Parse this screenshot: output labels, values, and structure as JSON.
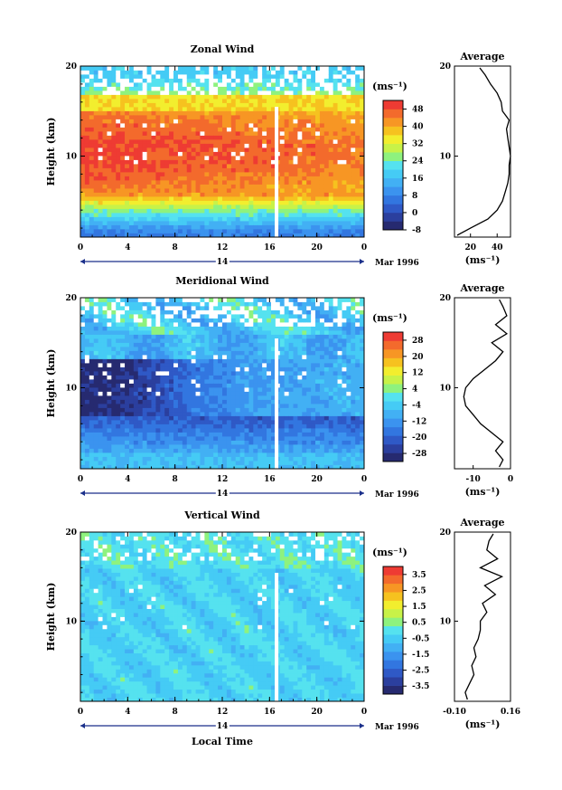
{
  "figure": {
    "xlabel": "Local Time",
    "date_label": "Mar 1996",
    "day_label": "14"
  },
  "chart_data": [
    {
      "type": "heatmap",
      "title": "Zonal Wind",
      "ylabel": "Height (km)",
      "xlabel": "",
      "x_ticks": [
        "0",
        "4",
        "8",
        "12",
        "16",
        "20",
        "0"
      ],
      "y_ticks": [
        "20",
        "10"
      ],
      "ylim": [
        1,
        20
      ],
      "colorbar": {
        "unit": "(ms⁻¹)",
        "ticks": [
          "48",
          "40",
          "32",
          "24",
          "16",
          "8",
          "0",
          "-8"
        ],
        "range": [
          -8,
          52
        ]
      },
      "profile": {
        "title": "Average",
        "unit": "(ms⁻¹)",
        "x_ticks": [
          "20",
          "40"
        ],
        "xlim": [
          8,
          50
        ],
        "heights": [
          1.2,
          2,
          3,
          4,
          5,
          6,
          7,
          8,
          9,
          10,
          11,
          12,
          13,
          14,
          15,
          16,
          17,
          18,
          19,
          19.8
        ],
        "values": [
          10,
          20,
          33,
          40,
          44,
          46,
          48,
          49,
          49,
          50,
          49,
          48,
          47,
          49,
          44,
          43,
          40,
          35,
          31,
          27
        ]
      }
    },
    {
      "type": "heatmap",
      "title": "Meridional Wind",
      "ylabel": "Height (km)",
      "xlabel": "",
      "x_ticks": [
        "0",
        "4",
        "8",
        "12",
        "16",
        "20",
        "0"
      ],
      "y_ticks": [
        "20",
        "10"
      ],
      "ylim": [
        1,
        20
      ],
      "colorbar": {
        "unit": "(ms⁻¹)",
        "ticks": [
          "28",
          "20",
          "12",
          "4",
          "-4",
          "-12",
          "-20",
          "-28"
        ],
        "range": [
          -32,
          32
        ]
      },
      "profile": {
        "title": "Average",
        "unit": "(ms⁻¹)",
        "x_ticks": [
          "-10",
          "0"
        ],
        "xlim": [
          -15,
          0
        ],
        "heights": [
          1.2,
          2,
          3,
          4,
          5,
          6,
          7,
          8,
          9,
          10,
          11,
          12,
          13,
          14,
          15,
          16,
          17,
          18,
          19,
          19.8
        ],
        "values": [
          -3,
          -2,
          -4,
          -2,
          -5,
          -8,
          -10,
          -12,
          -12.5,
          -12,
          -10,
          -7,
          -4,
          -2,
          -5,
          -1,
          -4,
          -1,
          -2,
          -3
        ]
      }
    },
    {
      "type": "heatmap",
      "title": "Vertical Wind",
      "ylabel": "Height (km)",
      "xlabel": "Local Time",
      "x_ticks": [
        "0",
        "4",
        "8",
        "12",
        "16",
        "20",
        "0"
      ],
      "y_ticks": [
        "20",
        "10"
      ],
      "ylim": [
        1,
        20
      ],
      "colorbar": {
        "unit": "(ms⁻¹)",
        "ticks": [
          "3.5",
          "2.5",
          "1.5",
          "0.5",
          "-0.5",
          "-1.5",
          "-2.5",
          "-3.5"
        ],
        "range": [
          -4,
          4
        ]
      },
      "profile": {
        "title": "Average",
        "unit": "(ms⁻¹)",
        "x_ticks": [
          "-0.10",
          "0.16"
        ],
        "xlim": [
          -0.1,
          0.16
        ],
        "heights": [
          1.2,
          2,
          3,
          4,
          5,
          6,
          7,
          8,
          9,
          10,
          11,
          12,
          13,
          14,
          15,
          16,
          17,
          18,
          19,
          19.8
        ],
        "values": [
          -0.04,
          -0.05,
          -0.03,
          -0.01,
          -0.02,
          0.0,
          -0.01,
          0.01,
          0.02,
          0.02,
          0.05,
          0.03,
          0.09,
          0.04,
          0.12,
          0.02,
          0.1,
          0.05,
          0.06,
          0.08
        ]
      }
    }
  ]
}
